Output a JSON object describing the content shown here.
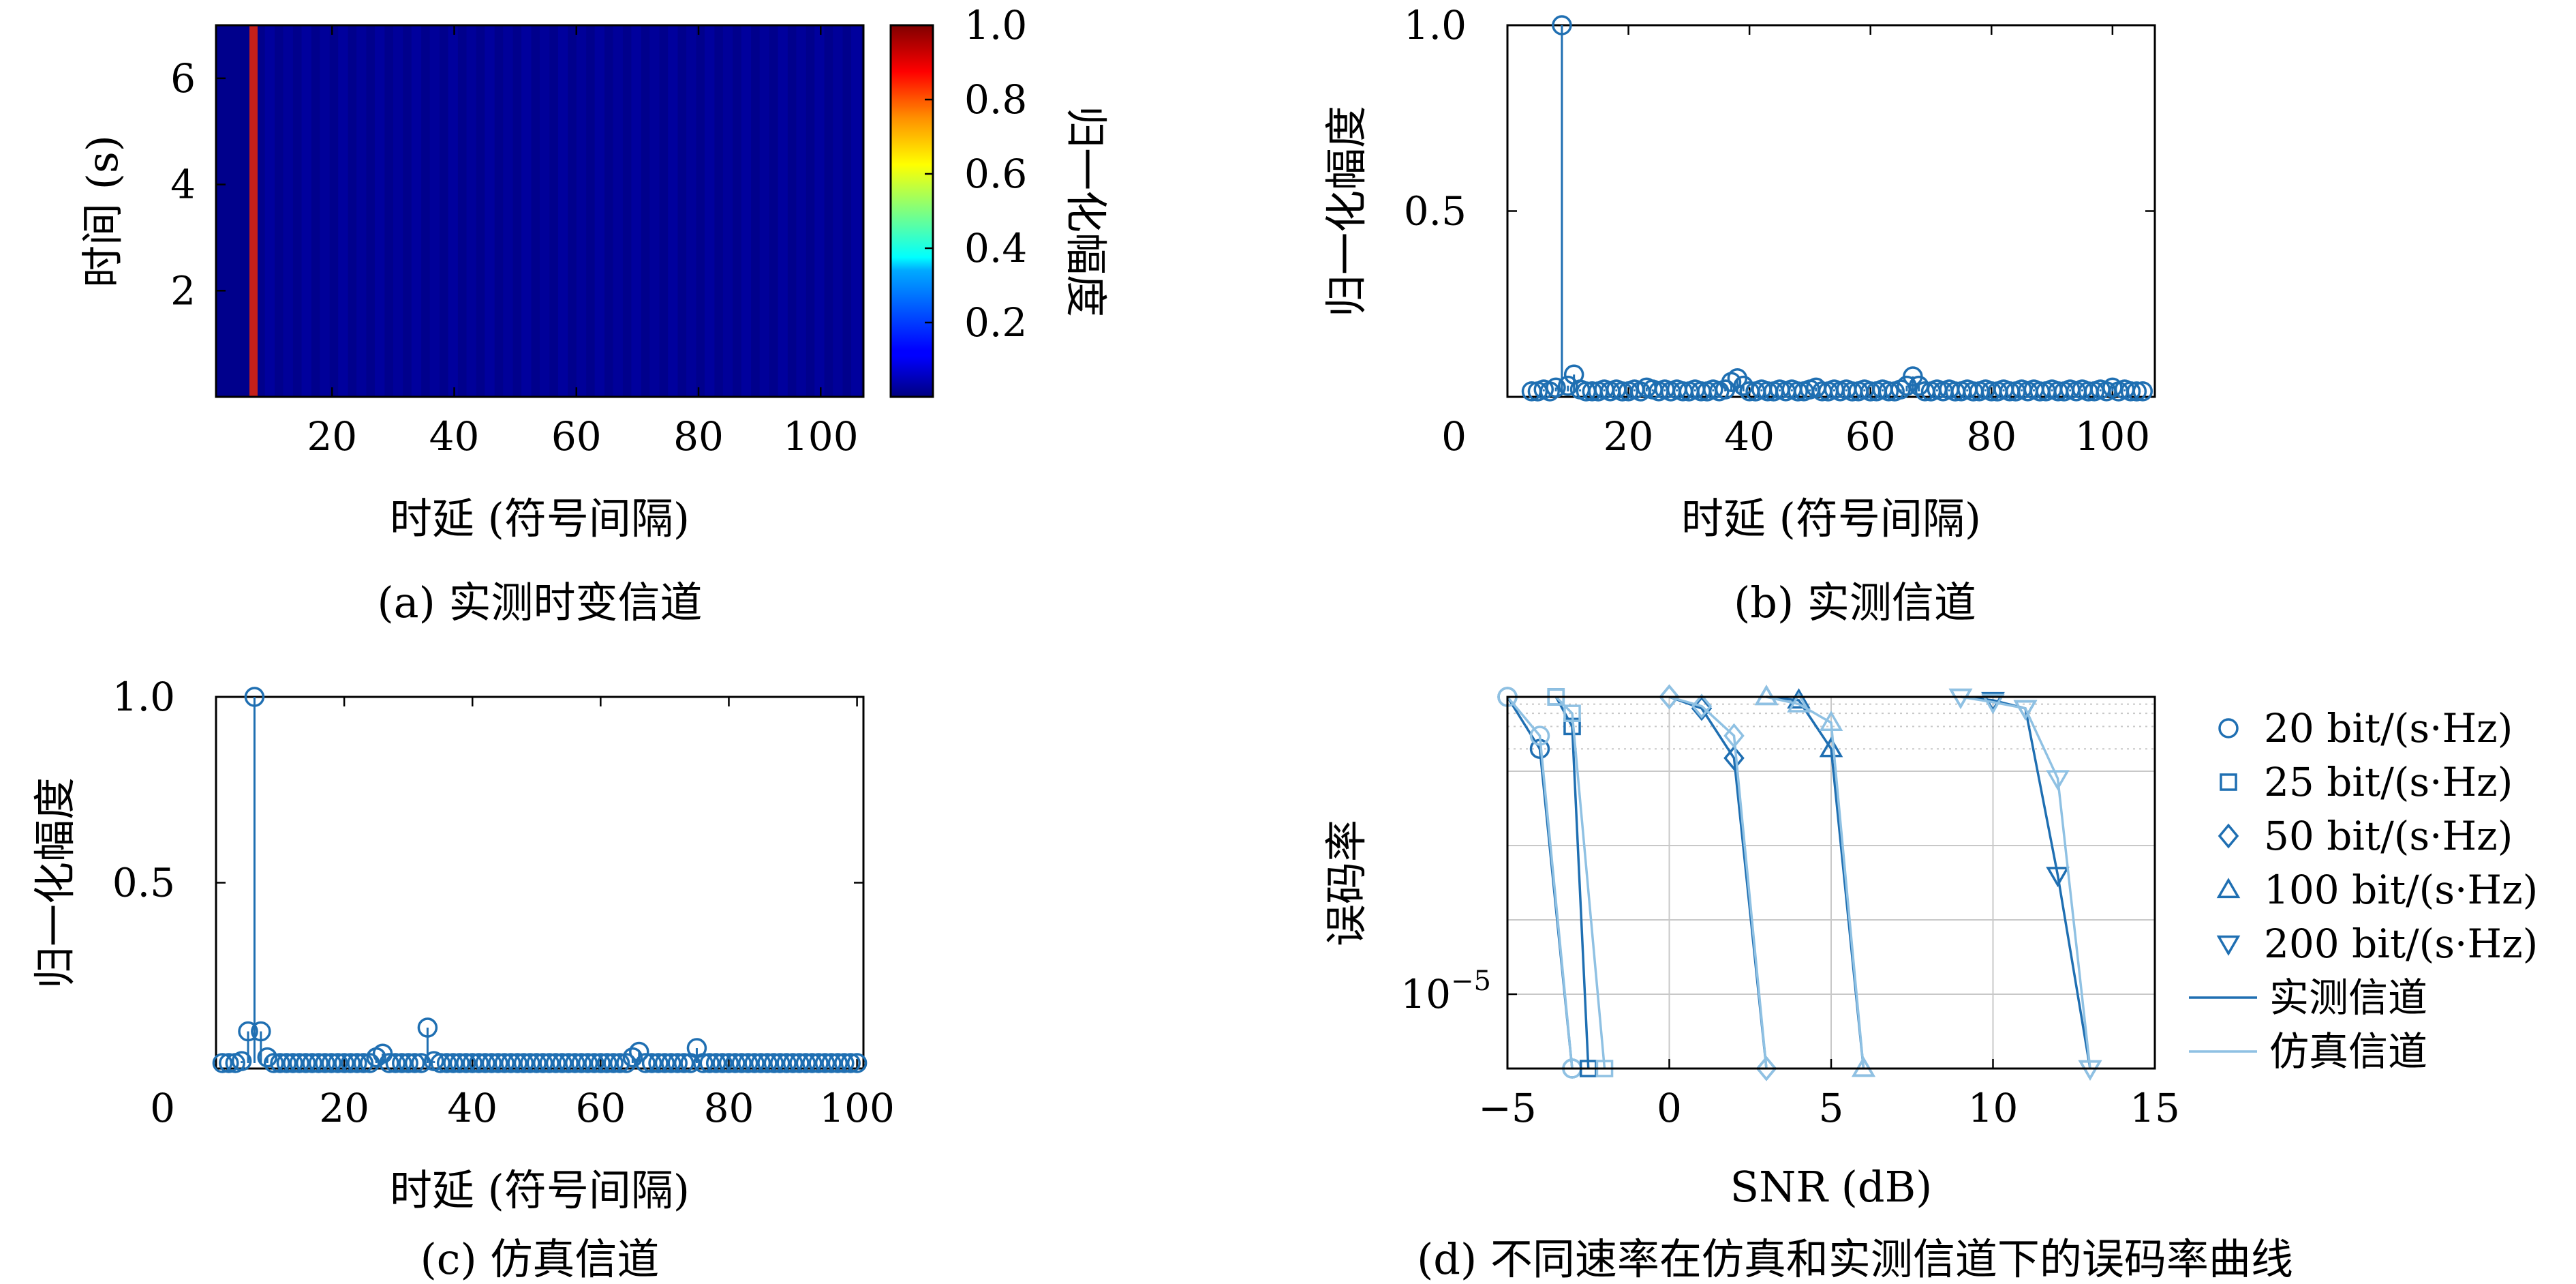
{
  "panels": {
    "a": {
      "caption": "(a) 实测时变信道",
      "xlabel": "时延 (符号间隔)",
      "ylabel": "时间 (s)",
      "colorbar_label": "归一化幅度"
    },
    "b": {
      "caption": "(b) 实测信道",
      "xlabel": "时延 (符号间隔)",
      "ylabel": "归一化幅度"
    },
    "c": {
      "caption": "(c) 仿真信道",
      "xlabel": "时延 (符号间隔)",
      "ylabel": "归一化幅度"
    },
    "d": {
      "caption": "(d) 不同速率在仿真和实测信道下的误码率曲线",
      "xlabel": "SNR (dB)",
      "ylabel": "误码率"
    }
  },
  "chart_data": [
    {
      "id": "a",
      "type": "heatmap",
      "xlabel": "时延 (符号间隔)",
      "ylabel": "时间 (s)",
      "xlim": [
        1,
        107
      ],
      "ylim": [
        0,
        7
      ],
      "xticks": [
        20,
        40,
        60,
        80,
        100
      ],
      "yticks": [
        2,
        4,
        6
      ],
      "colorbar": {
        "label": "归一化幅度",
        "range": [
          0,
          1.0
        ],
        "ticks": [
          0.2,
          0.4,
          0.6,
          0.8,
          1.0
        ],
        "colormap": "jet"
      },
      "peak": {
        "delay": 7,
        "amplitude": 1.0
      },
      "background_amplitude": 0.05
    },
    {
      "id": "b",
      "type": "scatter",
      "style": "stem",
      "xlabel": "时延 (符号间隔)",
      "ylabel": "归一化幅度",
      "xlim": [
        0,
        107
      ],
      "ylim": [
        0,
        1.0
      ],
      "xticks": [
        20,
        40,
        60,
        80,
        100
      ],
      "yticks": [
        0.5,
        1.0
      ],
      "ytick_labels": [
        "0",
        "0.5",
        "1.0"
      ],
      "color": "#1f6fb2",
      "x": [
        4,
        5,
        6,
        7,
        8,
        9,
        10,
        11,
        12,
        13,
        14,
        15,
        16,
        17,
        18,
        19,
        20,
        21,
        22,
        23,
        24,
        25,
        26,
        27,
        28,
        29,
        30,
        31,
        32,
        33,
        34,
        35,
        36,
        37,
        38,
        39,
        40,
        41,
        42,
        43,
        44,
        45,
        46,
        47,
        48,
        49,
        50,
        51,
        52,
        53,
        54,
        55,
        56,
        57,
        58,
        59,
        60,
        61,
        62,
        63,
        64,
        65,
        66,
        67,
        68,
        69,
        70,
        71,
        72,
        73,
        74,
        75,
        76,
        77,
        78,
        79,
        80,
        81,
        82,
        83,
        84,
        85,
        86,
        87,
        88,
        89,
        90,
        91,
        92,
        93,
        94,
        95,
        96,
        97,
        98,
        99,
        100,
        101,
        102,
        103,
        104,
        105
      ],
      "y": [
        0.015,
        0.01,
        0.02,
        0.01,
        0.025,
        1.0,
        0.03,
        0.06,
        0.02,
        0.01,
        0.015,
        0.01,
        0.02,
        0.015,
        0.02,
        0.01,
        0.015,
        0.02,
        0.01,
        0.025,
        0.02,
        0.015,
        0.02,
        0.01,
        0.02,
        0.015,
        0.01,
        0.02,
        0.015,
        0.01,
        0.02,
        0.015,
        0.02,
        0.04,
        0.05,
        0.03,
        0.015,
        0.01,
        0.02,
        0.015,
        0.01,
        0.02,
        0.015,
        0.02,
        0.01,
        0.015,
        0.02,
        0.025,
        0.015,
        0.01,
        0.02,
        0.015,
        0.02,
        0.01,
        0.015,
        0.02,
        0.01,
        0.015,
        0.02,
        0.015,
        0.01,
        0.02,
        0.03,
        0.055,
        0.03,
        0.015,
        0.01,
        0.02,
        0.015,
        0.02,
        0.01,
        0.015,
        0.02,
        0.01,
        0.015,
        0.02,
        0.015,
        0.01,
        0.02,
        0.015,
        0.01,
        0.02,
        0.015,
        0.02,
        0.01,
        0.015,
        0.02,
        0.015,
        0.01,
        0.02,
        0.015,
        0.02,
        0.01,
        0.015,
        0.02,
        0.015,
        0.025,
        0.01,
        0.02,
        0.015,
        0.01,
        0.015
      ]
    },
    {
      "id": "c",
      "type": "scatter",
      "style": "stem",
      "xlabel": "时延 (符号间隔)",
      "ylabel": "归一化幅度",
      "xlim": [
        0,
        101
      ],
      "ylim": [
        0,
        1.0
      ],
      "xticks": [
        20,
        40,
        60,
        80,
        100
      ],
      "yticks": [
        0.5,
        1.0
      ],
      "ytick_labels": [
        "0",
        "0.5",
        "1.0"
      ],
      "color": "#1f6fb2",
      "x": [
        1,
        2,
        3,
        4,
        5,
        6,
        7,
        8,
        9,
        10,
        11,
        12,
        13,
        14,
        15,
        16,
        17,
        18,
        19,
        20,
        21,
        22,
        23,
        24,
        25,
        26,
        27,
        28,
        29,
        30,
        31,
        32,
        33,
        34,
        35,
        36,
        37,
        38,
        39,
        40,
        41,
        42,
        43,
        44,
        45,
        46,
        47,
        48,
        49,
        50,
        51,
        52,
        53,
        54,
        55,
        56,
        57,
        58,
        59,
        60,
        61,
        62,
        63,
        64,
        65,
        66,
        67,
        68,
        69,
        70,
        71,
        72,
        73,
        74,
        75,
        76,
        77,
        78,
        79,
        80,
        81,
        82,
        83,
        84,
        85,
        86,
        87,
        88,
        89,
        90,
        91,
        92,
        93,
        94,
        95,
        96,
        97,
        98,
        99,
        100
      ],
      "y": [
        0.01,
        0.01,
        0.01,
        0.02,
        0.1,
        1.0,
        0.1,
        0.03,
        0.01,
        0.01,
        0.01,
        0.01,
        0.01,
        0.01,
        0.01,
        0.01,
        0.01,
        0.01,
        0.01,
        0.01,
        0.01,
        0.01,
        0.01,
        0.01,
        0.03,
        0.04,
        0.01,
        0.01,
        0.01,
        0.01,
        0.01,
        0.01,
        0.11,
        0.02,
        0.01,
        0.01,
        0.01,
        0.01,
        0.01,
        0.01,
        0.01,
        0.01,
        0.01,
        0.01,
        0.01,
        0.01,
        0.01,
        0.01,
        0.01,
        0.01,
        0.01,
        0.01,
        0.01,
        0.01,
        0.01,
        0.01,
        0.01,
        0.01,
        0.01,
        0.01,
        0.01,
        0.01,
        0.01,
        0.01,
        0.03,
        0.045,
        0.01,
        0.01,
        0.01,
        0.01,
        0.01,
        0.01,
        0.01,
        0.01,
        0.055,
        0.01,
        0.01,
        0.01,
        0.01,
        0.01,
        0.01,
        0.01,
        0.01,
        0.01,
        0.01,
        0.01,
        0.01,
        0.01,
        0.01,
        0.01,
        0.01,
        0.01,
        0.01,
        0.01,
        0.01,
        0.01,
        0.01,
        0.01,
        0.01,
        0.01
      ]
    },
    {
      "id": "d",
      "type": "line",
      "xlabel": "SNR (dB)",
      "ylabel": "误码率",
      "xlim": [
        -5,
        15
      ],
      "xticks": [
        -5,
        0,
        5,
        10,
        15
      ],
      "xtick_labels": [
        "−5",
        "0",
        "5",
        "10",
        "15"
      ],
      "yscale": "log",
      "ylim": [
        1e-06,
        0.1
      ],
      "yticks": [
        1e-05
      ],
      "ytick_labels": [
        "10−5"
      ],
      "grid": true,
      "legend_position": "right",
      "legend_entries": [
        "20 bit/(s·Hz)",
        "25 bit/(s·Hz)",
        "50 bit/(s·Hz)",
        "100 bit/(s·Hz)",
        "200 bit/(s·Hz)",
        "实测信道",
        "仿真信道"
      ],
      "colors": {
        "measured": "#1f6fb2",
        "simulated": "#8fc1e3"
      },
      "series": [
        {
          "rate": "20 bit/(s·Hz)",
          "marker": "circle",
          "channel": "measured",
          "x": [
            -5,
            -4,
            -3
          ],
          "y": [
            0.1,
            0.02,
            1e-06
          ]
        },
        {
          "rate": "20 bit/(s·Hz)",
          "marker": "circle",
          "channel": "simulated",
          "x": [
            -5,
            -4,
            -3
          ],
          "y": [
            0.1,
            0.03,
            1e-06
          ]
        },
        {
          "rate": "25 bit/(s·Hz)",
          "marker": "square",
          "channel": "measured",
          "x": [
            -3.5,
            -3,
            -2.5
          ],
          "y": [
            0.1,
            0.04,
            1e-06
          ]
        },
        {
          "rate": "25 bit/(s·Hz)",
          "marker": "square",
          "channel": "simulated",
          "x": [
            -3.5,
            -3,
            -2
          ],
          "y": [
            0.1,
            0.06,
            1e-06
          ]
        },
        {
          "rate": "50 bit/(s·Hz)",
          "marker": "diamond",
          "channel": "measured",
          "x": [
            0,
            1,
            2,
            3
          ],
          "y": [
            0.1,
            0.07,
            0.015,
            1e-06
          ]
        },
        {
          "rate": "50 bit/(s·Hz)",
          "marker": "diamond",
          "channel": "simulated",
          "x": [
            0,
            1,
            2,
            3
          ],
          "y": [
            0.1,
            0.075,
            0.03,
            1e-06
          ]
        },
        {
          "rate": "100 bit/(s·Hz)",
          "marker": "triangle-up",
          "channel": "measured",
          "x": [
            3,
            4,
            5,
            6
          ],
          "y": [
            0.1,
            0.09,
            0.02,
            1e-06
          ]
        },
        {
          "rate": "100 bit/(s·Hz)",
          "marker": "triangle-up",
          "channel": "simulated",
          "x": [
            3,
            4,
            5,
            6
          ],
          "y": [
            0.1,
            0.08,
            0.045,
            1e-06
          ]
        },
        {
          "rate": "200 bit/(s·Hz)",
          "marker": "triangle-down",
          "channel": "measured",
          "x": [
            9,
            10,
            11,
            12,
            13
          ],
          "y": [
            0.1,
            0.09,
            0.07,
            0.0004,
            1e-06
          ]
        },
        {
          "rate": "200 bit/(s·Hz)",
          "marker": "triangle-down",
          "channel": "simulated",
          "x": [
            9,
            10,
            11,
            12,
            13
          ],
          "y": [
            0.1,
            0.085,
            0.07,
            0.008,
            1e-06
          ]
        }
      ]
    }
  ]
}
